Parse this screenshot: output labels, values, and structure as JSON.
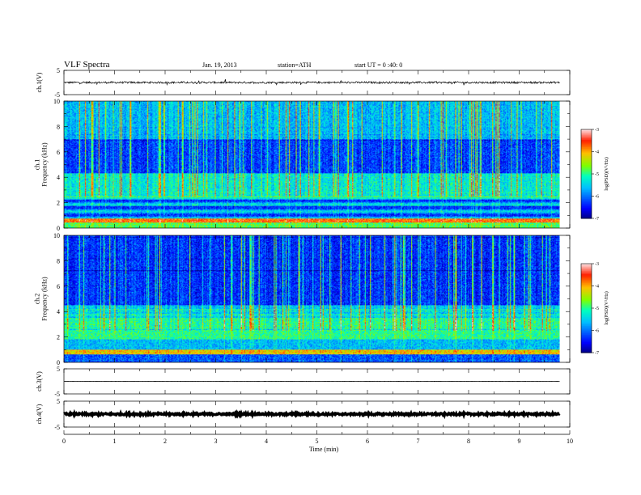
{
  "header": {
    "title": "VLF  Spectra",
    "date": "Jan. 19, 2013",
    "station": "station=ATH",
    "start": "start  UT =   0 :40: 0"
  },
  "colors": {
    "trace": "#000000",
    "colormap": [
      "#00007f",
      "#0000ff",
      "#00bfff",
      "#00ffbf",
      "#7fff00",
      "#ffbf00",
      "#ff2000",
      "#ffd8d8"
    ]
  },
  "chart_data": [
    {
      "type": "line",
      "name": "ch.1",
      "ylabel": "ch.1(V)",
      "ylim": [
        -5,
        5
      ],
      "yticks": [
        "5",
        "-5"
      ],
      "xlim": [
        0,
        10
      ],
      "baseline": 0,
      "amplitude": 0.4,
      "end_minute": 9.8
    },
    {
      "type": "heatmap",
      "name": "ch.1",
      "ylabel": "ch.1\nFrequency  (kHz)",
      "ylim": [
        0,
        10
      ],
      "yticks": [
        "0",
        "2",
        "4",
        "6",
        "8",
        "10"
      ],
      "xlim": [
        0,
        10
      ],
      "end_minute": 9.8,
      "colorbar": {
        "label": "log(PSD)(V²/Hz)",
        "range": [
          -7,
          -3
        ],
        "ticks": [
          "-3",
          "-4",
          "-5",
          "-6",
          "-7"
        ]
      }
    },
    {
      "type": "heatmap",
      "name": "ch.2",
      "ylabel": "ch.2\nFrequency  (kHz)",
      "ylim": [
        0,
        10
      ],
      "yticks": [
        "0",
        "2",
        "4",
        "6",
        "8",
        "10"
      ],
      "xlim": [
        0,
        10
      ],
      "end_minute": 9.8,
      "colorbar": {
        "label": "log(PSD)(V²/Hz)",
        "range": [
          -7,
          -3
        ],
        "ticks": [
          "-3",
          "-4",
          "-5",
          "-6",
          "-7"
        ]
      }
    },
    {
      "type": "line",
      "name": "ch.3",
      "ylabel": "ch.3(V)",
      "ylim": [
        -5,
        5
      ],
      "yticks": [
        "5",
        "-5"
      ],
      "xlim": [
        0,
        10
      ],
      "baseline": 0,
      "amplitude": 0.05,
      "end_minute": 9.8
    },
    {
      "type": "line",
      "name": "ch.4",
      "ylabel": "ch.4(V)",
      "ylim": [
        -5,
        5
      ],
      "yticks": [
        "5",
        "-5"
      ],
      "xlim": [
        0,
        10
      ],
      "baseline": 0,
      "amplitude": 0.35,
      "end_minute": 9.8
    }
  ],
  "xaxis": {
    "label": "Time  (min)",
    "ticks": [
      "0",
      "1",
      "2",
      "3",
      "4",
      "5",
      "6",
      "7",
      "8",
      "9",
      "10"
    ]
  }
}
